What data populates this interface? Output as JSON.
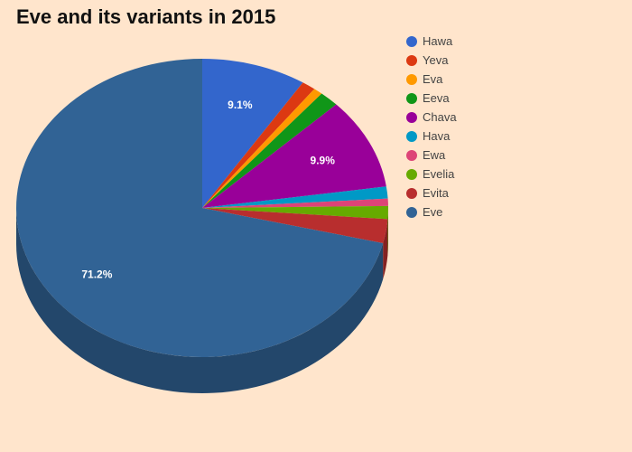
{
  "chart_data": {
    "type": "pie",
    "title": "Eve and its variants in 2015",
    "legend_position": "top-right",
    "three_d": true,
    "slices": [
      {
        "name": "Hawa",
        "value": 9.1,
        "color": "#3366CC",
        "label": "9.1%"
      },
      {
        "name": "Yeva",
        "value": 1.2,
        "color": "#DC3912",
        "label": ""
      },
      {
        "name": "Eva",
        "value": 0.8,
        "color": "#FF9900",
        "label": ""
      },
      {
        "name": "Eeva",
        "value": 1.7,
        "color": "#109618",
        "label": ""
      },
      {
        "name": "Chava",
        "value": 9.9,
        "color": "#990099",
        "label": "9.9%"
      },
      {
        "name": "Hava",
        "value": 1.3,
        "color": "#0099C6",
        "label": ""
      },
      {
        "name": "Ewa",
        "value": 0.8,
        "color": "#DD4477",
        "label": ""
      },
      {
        "name": "Evelia",
        "value": 1.4,
        "color": "#66AA00",
        "label": ""
      },
      {
        "name": "Evita",
        "value": 2.6,
        "color": "#B82E2E",
        "label": ""
      },
      {
        "name": "Eve",
        "value": 71.2,
        "color": "#316395",
        "label": "71.2%"
      }
    ]
  }
}
